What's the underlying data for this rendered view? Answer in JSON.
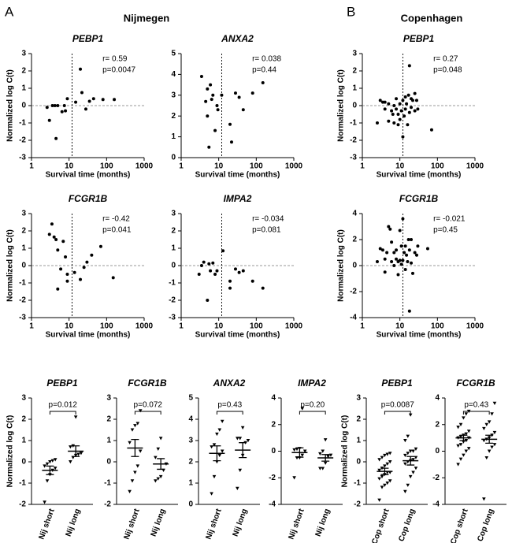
{
  "sections": [
    {
      "letter": "A",
      "title": "Nijmegen"
    },
    {
      "letter": "B",
      "title": "Copenhagen"
    }
  ],
  "chart_data": [
    {
      "type": "scatter",
      "title": "PEBP1",
      "xlabel": "Survival time (months)",
      "ylabel": "Normalized log C(t)",
      "annotations": [
        "r= 0.59",
        "p=0.0047"
      ],
      "xscale": "log",
      "xlim": [
        1,
        1000
      ],
      "xticks": [
        1,
        10,
        100,
        1000
      ],
      "ylim": [
        -3,
        3
      ],
      "yticks": [
        -3,
        -2,
        -1,
        0,
        1,
        2,
        3
      ],
      "vline": 12,
      "hline": 0,
      "color": "#000000",
      "x": [
        2.6,
        3,
        3.6,
        4.2,
        4.5,
        5,
        6.5,
        7.5,
        8,
        9,
        15,
        20,
        22,
        28,
        35,
        45,
        80,
        160
      ],
      "values": [
        -0.1,
        -0.85,
        0,
        0,
        -1.9,
        0,
        -0.35,
        0,
        -0.3,
        0.4,
        0.2,
        2.1,
        0.75,
        -0.2,
        0.25,
        0.4,
        0.35,
        0.35
      ]
    },
    {
      "type": "scatter",
      "title": "ANXA2",
      "xlabel": "Survival time (months)",
      "annotations": [
        "r= 0.038",
        "p=0.44"
      ],
      "xscale": "log",
      "xlim": [
        1,
        1000
      ],
      "xticks": [
        1,
        10,
        100,
        1000
      ],
      "ylim": [
        0,
        5
      ],
      "yticks": [
        0,
        1,
        2,
        3,
        4,
        5
      ],
      "vline": 12,
      "color": "#000000",
      "x": [
        3.5,
        4.5,
        5,
        5,
        5.5,
        6,
        6.5,
        7,
        8,
        9,
        9.5,
        12,
        20,
        22,
        28,
        35,
        45,
        80,
        150
      ],
      "values": [
        3.9,
        2.7,
        3.3,
        2.0,
        0.5,
        3.5,
        2.8,
        3.0,
        1.3,
        2.5,
        2.3,
        3.0,
        1.6,
        0.75,
        3.1,
        2.9,
        2.3,
        3.1,
        3.6
      ]
    },
    {
      "type": "scatter",
      "title": "FCGR1B",
      "xlabel": "Survival time (months)",
      "ylabel": "Normalized log C(t)",
      "annotations": [
        "r= -0.42",
        "p=0.041"
      ],
      "xscale": "log",
      "xlim": [
        1,
        1000
      ],
      "xticks": [
        1,
        10,
        100,
        1000
      ],
      "ylim": [
        -3,
        3
      ],
      "yticks": [
        -3,
        -2,
        -1,
        0,
        1,
        2,
        3
      ],
      "vline": 12,
      "hline": 0,
      "color": "#000000",
      "x": [
        3,
        3.5,
        4,
        4.5,
        5,
        5,
        6,
        7,
        8,
        9,
        9,
        14,
        20,
        25,
        30,
        40,
        70,
        150
      ],
      "values": [
        1.8,
        2.4,
        1.65,
        1.5,
        -1.35,
        0.9,
        -0.2,
        1.4,
        0.5,
        -0.9,
        -0.5,
        -0.4,
        -0.8,
        -0.1,
        0.2,
        0.6,
        1.1,
        -0.7
      ]
    },
    {
      "type": "scatter",
      "title": "IMPA2",
      "xlabel": "Survival time (months)",
      "annotations": [
        "r= -0.034",
        "p=0.081"
      ],
      "xscale": "log",
      "xlim": [
        1,
        1000
      ],
      "xticks": [
        1,
        10,
        100,
        1000
      ],
      "ylim": [
        -3,
        3
      ],
      "yticks": [
        -3,
        -2,
        -1,
        0,
        1,
        2,
        3
      ],
      "vline": 12,
      "hline": 0,
      "color": "#000000",
      "x": [
        3,
        3.5,
        4,
        5,
        5.5,
        6,
        7,
        8,
        9,
        13,
        20,
        20,
        28,
        35,
        45,
        80,
        150
      ],
      "values": [
        -0.5,
        0,
        0.2,
        -2,
        0.1,
        -0.3,
        0.15,
        -0.5,
        -0.3,
        0.85,
        -1.3,
        -0.9,
        -0.2,
        -0.4,
        -0.3,
        -0.9,
        -1.3
      ]
    },
    {
      "type": "scatter",
      "title": "PEBP1",
      "xlabel": "Survival time (months)",
      "ylabel": "Normalized log C(t)",
      "annotations": [
        "r= 0.27",
        "p=0.048"
      ],
      "xscale": "log",
      "xlim": [
        1,
        1000
      ],
      "xticks": [
        1,
        10,
        100,
        1000
      ],
      "ylim": [
        -3,
        3
      ],
      "yticks": [
        -3,
        -2,
        -1,
        0,
        1,
        2,
        3
      ],
      "vline": 12,
      "hline": 0,
      "color": "#000000",
      "x": [
        2.5,
        3,
        3.5,
        4,
        4,
        5,
        5,
        6,
        6.5,
        7,
        7,
        8,
        8,
        9,
        9,
        10,
        10,
        11,
        12,
        12,
        13,
        14,
        14,
        15,
        16,
        17,
        18,
        18,
        20,
        20,
        22,
        25,
        25,
        28,
        30,
        70
      ],
      "values": [
        -1,
        0.3,
        0.2,
        -0.2,
        0.2,
        0.1,
        -0.9,
        -0.3,
        -0.5,
        -1,
        0,
        -0.2,
        0.4,
        -1.1,
        -0.5,
        -0.8,
        0.1,
        -0.3,
        -1.8,
        0.3,
        -0.6,
        0.5,
        -0.2,
        0.1,
        -1.1,
        0.6,
        -0.4,
        2.3,
        0.4,
        -0.1,
        0.3,
        -0.3,
        0.7,
        0.3,
        -0.2,
        -1.4
      ]
    },
    {
      "type": "scatter",
      "title": "FCGR1B",
      "xlabel": "Survival time (months)",
      "ylabel": "Normalized log C(t)",
      "annotations": [
        "r= -0.021",
        "p=0.45"
      ],
      "xscale": "log",
      "xlim": [
        1,
        1000
      ],
      "xticks": [
        1,
        10,
        100,
        1000
      ],
      "ylim": [
        -4,
        4
      ],
      "yticks": [
        -4,
        -2,
        0,
        2,
        4
      ],
      "vline": 12,
      "hline": 0,
      "color": "#000000",
      "x": [
        2.5,
        3,
        3.5,
        4,
        4,
        4.5,
        5,
        5.5,
        6,
        6,
        7,
        7,
        8,
        8,
        9,
        9,
        10,
        10,
        11,
        11,
        12,
        12,
        13,
        14,
        14,
        15,
        16,
        17,
        18,
        18,
        20,
        20,
        22,
        25,
        28,
        30,
        55
      ],
      "values": [
        0.3,
        1.3,
        1.2,
        -0.5,
        0.5,
        1.0,
        3.0,
        2.8,
        1.8,
        0.3,
        1.0,
        0,
        1.2,
        0.5,
        0.3,
        -0.7,
        0.4,
        2.7,
        1.5,
        0.1,
        3.6,
        0.4,
        1.0,
        -0.3,
        1.5,
        0.8,
        0.3,
        2.0,
        -3.5,
        1.2,
        2.0,
        0.2,
        -0.6,
        1.0,
        0.8,
        1.5,
        1.3
      ]
    },
    {
      "type": "dot",
      "title": "PEBP1",
      "ylabel": "Normalized log C(t)",
      "annotation": "p=0.012",
      "categories": [
        "Nij short",
        "Nij long"
      ],
      "ylim": [
        -2,
        3
      ],
      "yticks": [
        -2,
        -1,
        0,
        1,
        2,
        3
      ],
      "color": "#000000",
      "groups": [
        [
          -1.9,
          -0.9,
          -0.6,
          -0.4,
          -0.3,
          -0.2,
          -0.1,
          0,
          0.05,
          0.1
        ],
        [
          0,
          0.2,
          0.3,
          0.35,
          0.4,
          0.7,
          0.75,
          2.1
        ]
      ],
      "mean": [
        -0.4,
        0.5
      ],
      "sem": [
        0.2,
        0.25
      ]
    },
    {
      "type": "dot",
      "title": "FCGR1B",
      "annotation": "p=0.072",
      "categories": [
        "Nij short",
        "Nij long"
      ],
      "ylim": [
        -2,
        3
      ],
      "yticks": [
        -2,
        -1,
        0,
        1,
        2,
        3
      ],
      "color": "#000000",
      "groups": [
        [
          -1.4,
          -0.9,
          -0.5,
          -0.2,
          0.5,
          0.9,
          1.5,
          1.7,
          1.8,
          2.4
        ],
        [
          -0.9,
          -0.8,
          -0.7,
          -0.4,
          -0.1,
          0.2,
          0.6,
          1.1
        ]
      ],
      "mean": [
        0.65,
        -0.1
      ],
      "sem": [
        0.4,
        0.25
      ]
    },
    {
      "type": "dot",
      "title": "ANXA2",
      "annotation": "p=0.43",
      "categories": [
        "Nij short",
        "Nij long"
      ],
      "ylim": [
        0,
        5
      ],
      "yticks": [
        0,
        1,
        2,
        3,
        4,
        5
      ],
      "color": "#000000",
      "groups": [
        [
          0.5,
          1.3,
          2.0,
          2.3,
          2.5,
          2.7,
          2.8,
          3.3,
          3.5,
          3.9
        ],
        [
          0.75,
          1.6,
          2.3,
          2.9,
          3.0,
          3.1,
          3.1,
          3.6
        ]
      ],
      "mean": [
        2.4,
        2.55
      ],
      "sem": [
        0.35,
        0.35
      ]
    },
    {
      "type": "dot",
      "title": "IMPA2",
      "annotation": "p=0.20",
      "categories": [
        "Nij short",
        "Nij long"
      ],
      "ylim": [
        -4,
        4
      ],
      "yticks": [
        -4,
        -2,
        0,
        2,
        4
      ],
      "color": "#000000",
      "groups": [
        [
          -2,
          -0.5,
          -0.5,
          -0.3,
          0,
          0.1,
          0.15,
          0.2,
          3.2
        ],
        [
          -1.3,
          -1.3,
          -0.9,
          -0.4,
          -0.3,
          -0.2,
          0,
          0.85
        ]
      ],
      "mean": [
        -0.1,
        -0.5
      ],
      "sem": [
        0.35,
        0.25
      ]
    },
    {
      "type": "dot",
      "title": "PEBP1",
      "ylabel": "Normalized log C(t)",
      "annotation": "p=0.0087",
      "categories": [
        "Cop short",
        "Cop long"
      ],
      "ylim": [
        -2,
        3
      ],
      "yticks": [
        -2,
        -1,
        0,
        1,
        2,
        3
      ],
      "color": "#000000",
      "groups": [
        [
          -1.8,
          -1.2,
          -1.1,
          -1.0,
          -0.9,
          -0.8,
          -0.7,
          -0.6,
          -0.5,
          -0.5,
          -0.4,
          -0.3,
          -0.2,
          -0.1,
          0,
          0.1,
          0.2,
          0.3,
          0.35,
          0.4
        ],
        [
          -1.4,
          -1.1,
          -0.7,
          -0.5,
          -0.3,
          -0.1,
          0,
          0.05,
          0.1,
          0.2,
          0.3,
          0.4,
          0.5,
          0.5,
          0.6,
          1.0,
          1.2,
          2.2
        ]
      ],
      "mean": [
        -0.45,
        0.05
      ],
      "sem": [
        0.15,
        0.2
      ]
    },
    {
      "type": "dot",
      "title": "FCGR1B",
      "annotation": "p=0.43",
      "categories": [
        "Cop short",
        "Cop long"
      ],
      "ylim": [
        -4,
        4
      ],
      "yticks": [
        -4,
        -2,
        0,
        2,
        4
      ],
      "color": "#000000",
      "groups": [
        [
          -1.0,
          -0.6,
          -0.3,
          0,
          0.2,
          0.4,
          0.5,
          0.7,
          0.8,
          1.0,
          1.0,
          1.1,
          1.2,
          1.3,
          1.5,
          1.8,
          2.0,
          2.5,
          2.8,
          3.0
        ],
        [
          -3.6,
          -0.5,
          0,
          0.3,
          0.5,
          0.8,
          0.9,
          1.0,
          1.2,
          1.4,
          1.7,
          2.0,
          2.2,
          2.8,
          3.6
        ]
      ],
      "mean": [
        1.0,
        0.9
      ],
      "sem": [
        0.2,
        0.3
      ]
    }
  ]
}
